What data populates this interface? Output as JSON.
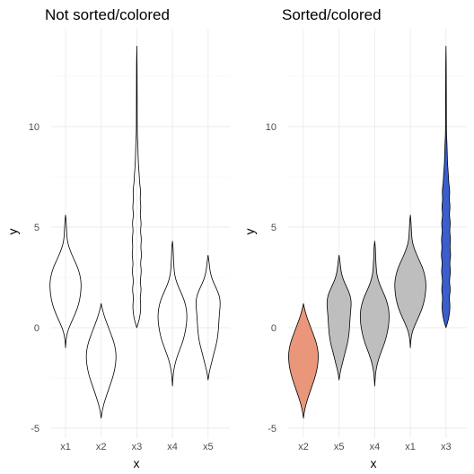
{
  "chart_data": [
    {
      "type": "violin",
      "title": "Not sorted/colored",
      "xlabel": "x",
      "ylabel": "y",
      "ylim": [
        -5.6,
        14.6
      ],
      "y_ticks": [
        -5,
        0,
        5,
        10
      ],
      "grid": true,
      "categories": [
        "x1",
        "x2",
        "x3",
        "x4",
        "x5"
      ],
      "violins": [
        {
          "category": "x1",
          "fill": "none",
          "profile": [
            [
              -1.0,
              0
            ],
            [
              -0.6,
              0.03
            ],
            [
              -0.2,
              0.12
            ],
            [
              0.2,
              0.32
            ],
            [
              0.6,
              0.55
            ],
            [
              1.0,
              0.75
            ],
            [
              1.4,
              0.88
            ],
            [
              1.8,
              0.95
            ],
            [
              2.2,
              0.97
            ],
            [
              2.6,
              0.9
            ],
            [
              3.0,
              0.75
            ],
            [
              3.4,
              0.52
            ],
            [
              3.8,
              0.3
            ],
            [
              4.2,
              0.14
            ],
            [
              4.5,
              0.09
            ],
            [
              4.9,
              0.06
            ],
            [
              5.3,
              0.04
            ],
            [
              5.6,
              0
            ]
          ]
        },
        {
          "category": "x2",
          "fill": "none",
          "profile": [
            [
              -4.5,
              0
            ],
            [
              -4.2,
              0.05
            ],
            [
              -3.8,
              0.16
            ],
            [
              -3.3,
              0.36
            ],
            [
              -2.8,
              0.58
            ],
            [
              -2.3,
              0.78
            ],
            [
              -1.8,
              0.9
            ],
            [
              -1.3,
              0.93
            ],
            [
              -0.8,
              0.82
            ],
            [
              -0.3,
              0.6
            ],
            [
              0.2,
              0.36
            ],
            [
              0.6,
              0.18
            ],
            [
              1.0,
              0.05
            ],
            [
              1.2,
              0
            ]
          ]
        },
        {
          "category": "x3",
          "fill": "none",
          "profile": [
            [
              0.0,
              0
            ],
            [
              0.3,
              0.12
            ],
            [
              0.7,
              0.22
            ],
            [
              1.1,
              0.25
            ],
            [
              1.5,
              0.2
            ],
            [
              1.9,
              0.28
            ],
            [
              2.3,
              0.2
            ],
            [
              2.8,
              0.29
            ],
            [
              3.2,
              0.22
            ],
            [
              3.6,
              0.3
            ],
            [
              4.0,
              0.24
            ],
            [
              4.4,
              0.29
            ],
            [
              4.8,
              0.22
            ],
            [
              5.2,
              0.28
            ],
            [
              5.6,
              0.2
            ],
            [
              6.0,
              0.26
            ],
            [
              6.4,
              0.2
            ],
            [
              6.8,
              0.24
            ],
            [
              7.2,
              0.17
            ],
            [
              7.6,
              0.15
            ],
            [
              8.1,
              0.1
            ],
            [
              8.6,
              0.08
            ],
            [
              9.2,
              0.06
            ],
            [
              9.6,
              0.03
            ],
            [
              10.5,
              0.025
            ],
            [
              12.0,
              0.02
            ],
            [
              13.2,
              0.015
            ],
            [
              14.0,
              0
            ]
          ]
        },
        {
          "category": "x4",
          "fill": "none",
          "profile": [
            [
              -2.9,
              0
            ],
            [
              -2.5,
              0.03
            ],
            [
              -2.1,
              0.08
            ],
            [
              -1.6,
              0.22
            ],
            [
              -1.1,
              0.45
            ],
            [
              -0.6,
              0.68
            ],
            [
              -0.1,
              0.82
            ],
            [
              0.4,
              0.9
            ],
            [
              0.9,
              0.88
            ],
            [
              1.4,
              0.72
            ],
            [
              1.8,
              0.5
            ],
            [
              2.2,
              0.28
            ],
            [
              2.6,
              0.14
            ],
            [
              3.0,
              0.09
            ],
            [
              3.5,
              0.06
            ],
            [
              4.0,
              0.04
            ],
            [
              4.3,
              0
            ]
          ]
        },
        {
          "category": "x5",
          "fill": "none",
          "profile": [
            [
              -2.6,
              0
            ],
            [
              -2.2,
              0.07
            ],
            [
              -1.8,
              0.2
            ],
            [
              -1.3,
              0.35
            ],
            [
              -0.8,
              0.52
            ],
            [
              -0.3,
              0.62
            ],
            [
              0.2,
              0.66
            ],
            [
              0.7,
              0.7
            ],
            [
              1.2,
              0.76
            ],
            [
              1.6,
              0.7
            ],
            [
              2.0,
              0.48
            ],
            [
              2.4,
              0.25
            ],
            [
              2.8,
              0.12
            ],
            [
              3.2,
              0.07
            ],
            [
              3.6,
              0
            ]
          ]
        }
      ]
    },
    {
      "type": "violin",
      "title": "Sorted/colored",
      "xlabel": "x",
      "ylabel": "y",
      "ylim": [
        -5.6,
        14.6
      ],
      "y_ticks": [
        -5,
        0,
        5,
        10
      ],
      "grid": true,
      "categories": [
        "x2",
        "x5",
        "x4",
        "x1",
        "x3"
      ],
      "violins": [
        {
          "category": "x2",
          "fill": "#e9967a",
          "ref": "x2"
        },
        {
          "category": "x5",
          "fill": "#bebebe",
          "ref": "x5"
        },
        {
          "category": "x4",
          "fill": "#bebebe",
          "ref": "x4"
        },
        {
          "category": "x1",
          "fill": "#bebebe",
          "ref": "x1"
        },
        {
          "category": "x3",
          "fill": "#3a5fcd",
          "ref": "x3"
        }
      ]
    }
  ]
}
